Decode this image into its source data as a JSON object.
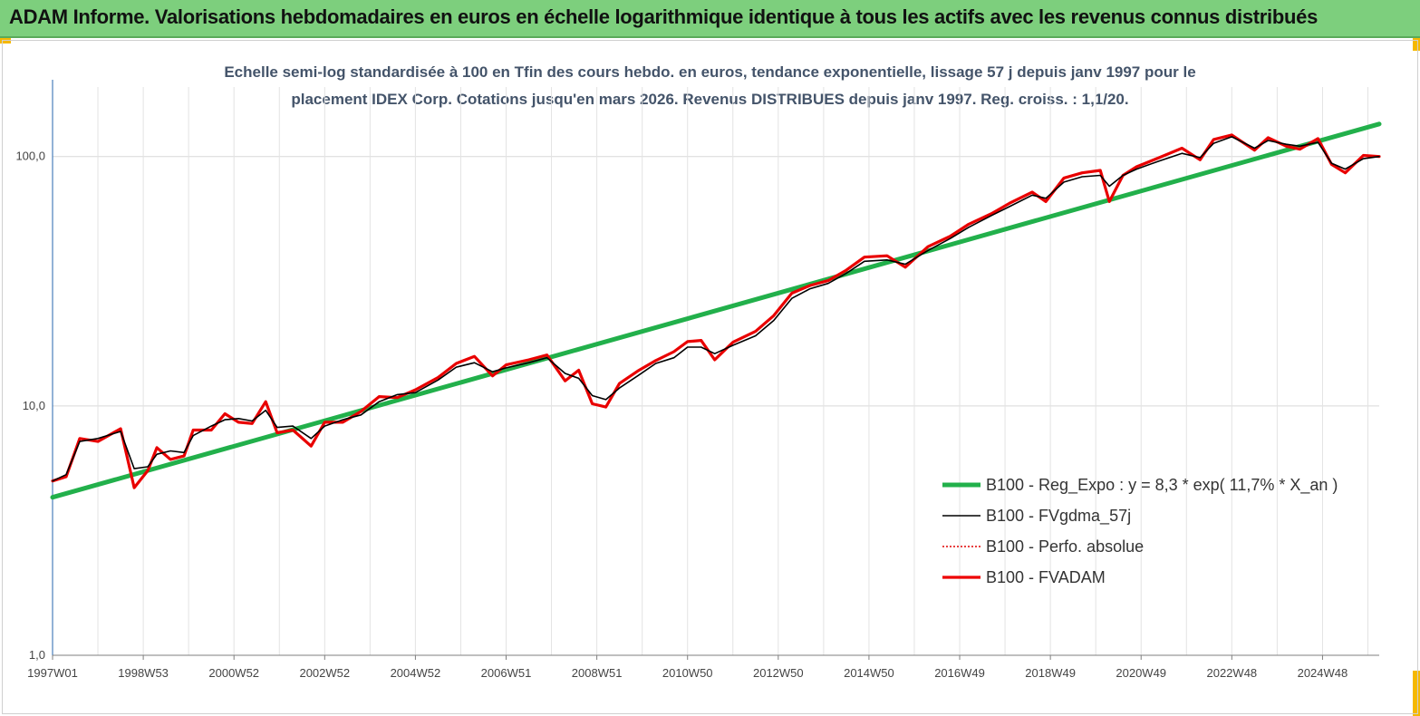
{
  "header": {
    "title": "ADAM Informe. Valorisations hebdomadaires en euros en échelle logarithmique identique à tous les actifs avec les revenus connus distribués"
  },
  "colors": {
    "banner": "#7dcf7d",
    "corner": "#f5b800",
    "regression": "#22b04b",
    "smoothed": "#000000",
    "absolute": "#e00000",
    "fvadam": "#ee0000"
  },
  "chart_data": {
    "type": "line",
    "title_line1": "Echelle semi-log standardisée à 100 en Tfin des cours hebdo. en euros, tendance exponentielle, lissage 57 j depuis janv 1997 pour le",
    "title_line2": "placement IDEX Corp. Cotations jusqu'en mars 2026. Revenus DISTRIBUES depuis janv 1997. Reg. croiss. : 1,1/20.",
    "y_scale": "log",
    "ylim": [
      1,
      190
    ],
    "xlim": [
      1997.0,
      2026.25
    ],
    "y_ticks": [
      {
        "value": 1,
        "label": "1,0"
      },
      {
        "value": 10,
        "label": "10,0"
      },
      {
        "value": 100,
        "label": "100,0"
      }
    ],
    "x_ticks": [
      {
        "value": 1997.0,
        "label": "1997W01"
      },
      {
        "value": 1999.0,
        "label": "1998W53"
      },
      {
        "value": 2001.0,
        "label": "2000W52"
      },
      {
        "value": 2003.0,
        "label": "2002W52"
      },
      {
        "value": 2005.0,
        "label": "2004W52"
      },
      {
        "value": 2007.0,
        "label": "2006W51"
      },
      {
        "value": 2009.0,
        "label": "2008W51"
      },
      {
        "value": 2011.0,
        "label": "2010W50"
      },
      {
        "value": 2013.0,
        "label": "2012W50"
      },
      {
        "value": 2015.0,
        "label": "2014W50"
      },
      {
        "value": 2017.0,
        "label": "2016W49"
      },
      {
        "value": 2019.0,
        "label": "2018W49"
      },
      {
        "value": 2021.0,
        "label": "2020W49"
      },
      {
        "value": 2023.0,
        "label": "2022W48"
      },
      {
        "value": 2025.0,
        "label": "2024W48"
      }
    ],
    "grid": "vertical",
    "legend_position": "bottom-right",
    "series": [
      {
        "name": "B100 - Reg_Expo : y = 8,3 * exp( 11,7% *  X_an )",
        "style": "thick-green",
        "x": [
          1997.0,
          2026.25
        ],
        "values": [
          4.3,
          135
        ]
      },
      {
        "name": "B100 - FVgdma_57j",
        "style": "thin-black",
        "x": [
          1997.0,
          1997.3,
          1997.6,
          1998.0,
          1998.5,
          1998.8,
          1999.1,
          1999.3,
          1999.6,
          1999.9,
          2000.1,
          2000.5,
          2000.8,
          2001.1,
          2001.4,
          2001.7,
          2001.95,
          2002.3,
          2002.7,
          2003.0,
          2003.4,
          2003.8,
          2004.2,
          2004.6,
          2005.0,
          2005.5,
          2005.9,
          2006.3,
          2006.7,
          2007.0,
          2007.5,
          2007.9,
          2008.3,
          2008.6,
          2008.9,
          2009.2,
          2009.5,
          2009.9,
          2010.3,
          2010.7,
          2011.0,
          2011.3,
          2011.6,
          2012.0,
          2012.5,
          2012.9,
          2013.3,
          2013.7,
          2014.1,
          2014.5,
          2014.9,
          2015.4,
          2015.8,
          2016.3,
          2016.8,
          2017.2,
          2017.7,
          2018.1,
          2018.6,
          2018.9,
          2019.3,
          2019.7,
          2020.1,
          2020.3,
          2020.6,
          2020.9,
          2021.4,
          2021.9,
          2022.3,
          2022.6,
          2023.0,
          2023.5,
          2023.8,
          2024.2,
          2024.5,
          2024.9,
          2025.2,
          2025.5,
          2025.9,
          2026.25
        ],
        "values": [
          5.0,
          5.3,
          7.2,
          7.4,
          7.9,
          5.6,
          5.7,
          6.4,
          6.6,
          6.5,
          7.6,
          8.3,
          8.8,
          8.9,
          8.7,
          9.6,
          8.2,
          8.3,
          7.4,
          8.3,
          8.8,
          9.2,
          10.4,
          11.1,
          11.3,
          12.7,
          14.3,
          14.9,
          13.7,
          14.2,
          14.9,
          15.6,
          13.5,
          12.9,
          11.0,
          10.6,
          11.8,
          13.2,
          14.8,
          15.6,
          17.2,
          17.2,
          16.2,
          17.5,
          19.1,
          22.0,
          27.0,
          29.5,
          31.0,
          34.0,
          38.0,
          38.5,
          37.0,
          42.0,
          47.0,
          52.0,
          58.0,
          63.0,
          70.0,
          68.0,
          79.0,
          83.0,
          84.0,
          76.0,
          84.0,
          89.0,
          96.0,
          103.0,
          99.0,
          113.0,
          120.0,
          108.0,
          116.0,
          112.0,
          110.0,
          114.0,
          94.0,
          89.0,
          98.0,
          100.0
        ]
      },
      {
        "name": "B100 - Perfo. absolue",
        "style": "dotted-red",
        "x": [
          1997.0,
          1997.3,
          1997.6,
          1998.0,
          1998.5,
          1998.8,
          1999.1,
          1999.3,
          1999.6,
          1999.9,
          2000.1,
          2000.5,
          2000.8,
          2001.1,
          2001.4,
          2001.7,
          2001.95,
          2002.3,
          2002.7,
          2003.0,
          2003.4,
          2003.8,
          2004.2,
          2004.6,
          2005.0,
          2005.5,
          2005.9,
          2006.3,
          2006.7,
          2007.0,
          2007.5,
          2007.9,
          2008.3,
          2008.6,
          2008.9,
          2009.2,
          2009.5,
          2009.9,
          2010.3,
          2010.7,
          2011.0,
          2011.3,
          2011.6,
          2012.0,
          2012.5,
          2012.9,
          2013.3,
          2013.7,
          2014.1,
          2014.5,
          2014.9,
          2015.4,
          2015.8,
          2016.3,
          2016.8,
          2017.2,
          2017.7,
          2018.1,
          2018.6,
          2018.9,
          2019.3,
          2019.7,
          2020.1,
          2020.3,
          2020.6,
          2020.9,
          2021.4,
          2021.9,
          2022.3,
          2022.6,
          2023.0,
          2023.5,
          2023.8,
          2024.2,
          2024.5,
          2024.9,
          2025.2,
          2025.5,
          2025.9,
          2026.25
        ],
        "values": [
          5.0,
          5.2,
          7.4,
          7.2,
          8.1,
          4.7,
          5.5,
          6.8,
          6.1,
          6.3,
          8.0,
          8.0,
          9.3,
          8.6,
          8.5,
          10.4,
          7.8,
          8.0,
          6.9,
          8.6,
          8.6,
          9.5,
          10.9,
          10.8,
          11.6,
          13.0,
          14.8,
          15.8,
          13.2,
          14.6,
          15.3,
          16.0,
          12.6,
          13.9,
          10.2,
          9.9,
          12.3,
          13.8,
          15.2,
          16.5,
          18.1,
          18.3,
          15.3,
          18.0,
          19.9,
          23.0,
          28.3,
          30.4,
          31.8,
          35.0,
          39.5,
          40.0,
          36.0,
          43.5,
          48.0,
          53.5,
          59.0,
          65.0,
          72.0,
          66.0,
          82.0,
          86.0,
          88.0,
          66.0,
          84.0,
          91.0,
          99.0,
          108.0,
          97.0,
          117.0,
          122.0,
          106.0,
          119.0,
          110.0,
          107.0,
          118.0,
          93.0,
          86.0,
          101.0,
          100.0
        ]
      },
      {
        "name": "B100 - FVADAM",
        "style": "thick-red",
        "x": [
          1997.0,
          1997.3,
          1997.6,
          1998.0,
          1998.5,
          1998.8,
          1999.1,
          1999.3,
          1999.6,
          1999.9,
          2000.1,
          2000.5,
          2000.8,
          2001.1,
          2001.4,
          2001.7,
          2001.95,
          2002.3,
          2002.7,
          2003.0,
          2003.4,
          2003.8,
          2004.2,
          2004.6,
          2005.0,
          2005.5,
          2005.9,
          2006.3,
          2006.7,
          2007.0,
          2007.5,
          2007.9,
          2008.3,
          2008.6,
          2008.9,
          2009.2,
          2009.5,
          2009.9,
          2010.3,
          2010.7,
          2011.0,
          2011.3,
          2011.6,
          2012.0,
          2012.5,
          2012.9,
          2013.3,
          2013.7,
          2014.1,
          2014.5,
          2014.9,
          2015.4,
          2015.8,
          2016.3,
          2016.8,
          2017.2,
          2017.7,
          2018.1,
          2018.6,
          2018.9,
          2019.3,
          2019.7,
          2020.1,
          2020.3,
          2020.6,
          2020.9,
          2021.4,
          2021.9,
          2022.3,
          2022.6,
          2023.0,
          2023.5,
          2023.8,
          2024.2,
          2024.5,
          2024.9,
          2025.2,
          2025.5,
          2025.9,
          2026.25
        ],
        "values": [
          5.0,
          5.2,
          7.4,
          7.2,
          8.1,
          4.7,
          5.5,
          6.8,
          6.1,
          6.3,
          8.0,
          8.0,
          9.3,
          8.6,
          8.5,
          10.4,
          7.8,
          8.0,
          6.9,
          8.6,
          8.6,
          9.5,
          10.9,
          10.8,
          11.6,
          13.0,
          14.8,
          15.8,
          13.2,
          14.6,
          15.3,
          16.0,
          12.6,
          13.9,
          10.2,
          9.9,
          12.3,
          13.8,
          15.2,
          16.5,
          18.1,
          18.3,
          15.3,
          18.0,
          19.9,
          23.0,
          28.3,
          30.4,
          31.8,
          35.0,
          39.5,
          40.0,
          36.0,
          43.5,
          48.0,
          53.5,
          59.0,
          65.0,
          72.0,
          66.0,
          82.0,
          86.0,
          88.0,
          66.0,
          84.0,
          91.0,
          99.0,
          108.0,
          97.0,
          117.0,
          122.0,
          106.0,
          119.0,
          110.0,
          107.0,
          118.0,
          93.0,
          86.0,
          101.0,
          100.0
        ]
      }
    ]
  }
}
